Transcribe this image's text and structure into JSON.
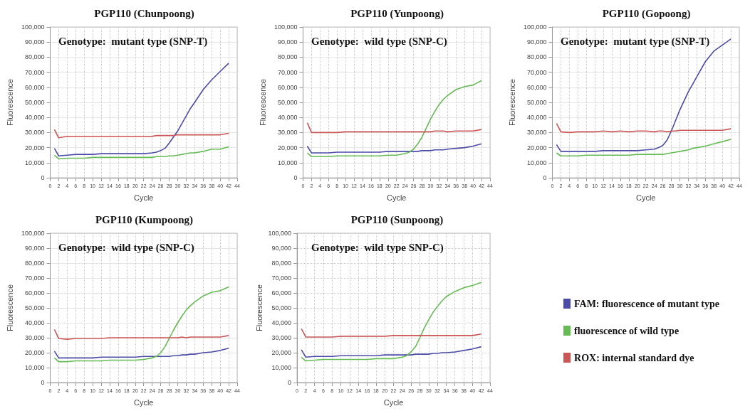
{
  "chart_data": [
    {
      "type": "line",
      "title": "PGP110 (Chunpoong)",
      "xlabel": "Cycle",
      "ylabel": "Fluorescence",
      "annotations": [
        "Genotype:  mutant type (SNP-T)"
      ],
      "grid": true,
      "marker": "none",
      "line_style": "solid",
      "xlim": [
        0,
        44
      ],
      "xticks": [
        0,
        2,
        4,
        6,
        8,
        10,
        12,
        14,
        16,
        18,
        20,
        22,
        24,
        26,
        28,
        30,
        32,
        34,
        36,
        38,
        40,
        42,
        44
      ],
      "ylim": [
        0,
        100000
      ],
      "yticks": [
        {
          "value": 0,
          "label": "0"
        },
        {
          "value": 10000,
          "label": "10,000"
        },
        {
          "value": 20000,
          "label": "20,000"
        },
        {
          "value": 30000,
          "label": "30,000"
        },
        {
          "value": 40000,
          "label": "40,000"
        },
        {
          "value": 50000,
          "label": "50,000"
        },
        {
          "value": 60000,
          "label": "60,000"
        },
        {
          "value": 70000,
          "label": "70,000"
        },
        {
          "value": 80000,
          "label": "80,000"
        },
        {
          "value": 90000,
          "label": "90,000"
        },
        {
          "value": 100000,
          "label": "100,000"
        }
      ],
      "x": [
        1,
        2,
        4,
        6,
        8,
        10,
        12,
        14,
        16,
        18,
        20,
        22,
        24,
        25,
        26,
        27,
        28,
        29,
        30,
        31,
        32,
        33,
        34,
        36,
        38,
        40,
        42
      ],
      "series": [
        {
          "color": "#4b4ba8",
          "values": [
            19500,
            14500,
            15000,
            15500,
            15500,
            15500,
            16000,
            16000,
            16000,
            16000,
            16000,
            16000,
            16500,
            17000,
            18000,
            19500,
            23000,
            27000,
            31000,
            36000,
            41000,
            46000,
            50000,
            58500,
            65000,
            70500,
            76000
          ]
        },
        {
          "color": "#66bb55",
          "values": [
            15000,
            12500,
            13000,
            13000,
            13000,
            13500,
            13500,
            13500,
            13500,
            13500,
            13500,
            13500,
            13500,
            14000,
            14000,
            14000,
            14500,
            14500,
            15000,
            15500,
            16000,
            16500,
            16500,
            17500,
            19000,
            19000,
            20500
          ]
        },
        {
          "color": "#cc5555",
          "values": [
            32000,
            26500,
            27500,
            27500,
            27500,
            27500,
            27500,
            27500,
            27500,
            27500,
            27500,
            27500,
            27500,
            28000,
            28000,
            28000,
            28000,
            28000,
            28500,
            28500,
            28500,
            28500,
            28500,
            28500,
            28500,
            28500,
            29500
          ]
        }
      ]
    },
    {
      "type": "line",
      "title": "PGP110 (Yunpoong)",
      "xlabel": "Cycle",
      "ylabel": "Fluorescence",
      "annotations": [
        "Genotype:  wild type (SNP-C)"
      ],
      "grid": true,
      "marker": "none",
      "line_style": "solid",
      "xlim": [
        0,
        44
      ],
      "xticks": [
        0,
        2,
        4,
        6,
        8,
        10,
        12,
        14,
        16,
        18,
        20,
        22,
        24,
        26,
        28,
        30,
        32,
        34,
        36,
        38,
        40,
        42,
        44
      ],
      "ylim": [
        0,
        100000
      ],
      "yticks": [
        {
          "value": 0,
          "label": "0"
        },
        {
          "value": 10000,
          "label": "10,000"
        },
        {
          "value": 20000,
          "label": "20,000"
        },
        {
          "value": 30000,
          "label": "30,000"
        },
        {
          "value": 40000,
          "label": "40,000"
        },
        {
          "value": 50000,
          "label": "50,000"
        },
        {
          "value": 60000,
          "label": "60,000"
        },
        {
          "value": 70000,
          "label": "70,000"
        },
        {
          "value": 80000,
          "label": "80,000"
        },
        {
          "value": 90000,
          "label": "90,000"
        },
        {
          "value": 100000,
          "label": "100,000"
        }
      ],
      "x": [
        1,
        2,
        4,
        6,
        8,
        10,
        12,
        14,
        16,
        18,
        20,
        22,
        24,
        25,
        26,
        27,
        28,
        29,
        30,
        31,
        32,
        33,
        34,
        36,
        38,
        40,
        42
      ],
      "series": [
        {
          "color": "#4b4ba8",
          "values": [
            21000,
            16500,
            16500,
            16500,
            17000,
            17000,
            17000,
            17000,
            17000,
            17000,
            17500,
            17500,
            17500,
            17500,
            17500,
            17500,
            18000,
            18000,
            18000,
            18500,
            18500,
            18500,
            19000,
            19500,
            20000,
            21000,
            22500
          ]
        },
        {
          "color": "#66bb55",
          "values": [
            16500,
            14000,
            14000,
            14000,
            14500,
            14500,
            14500,
            14500,
            14500,
            14500,
            15000,
            15000,
            16000,
            17000,
            19000,
            22500,
            27000,
            33000,
            39000,
            44000,
            48500,
            52000,
            54500,
            58500,
            60500,
            61500,
            64500
          ]
        },
        {
          "color": "#cc5555",
          "values": [
            36500,
            30000,
            30000,
            30000,
            30000,
            30500,
            30500,
            30500,
            30500,
            30500,
            30500,
            30500,
            30500,
            30500,
            30500,
            30500,
            30500,
            30500,
            30500,
            31000,
            31000,
            31000,
            30500,
            31000,
            31000,
            31000,
            32000
          ]
        }
      ]
    },
    {
      "type": "line",
      "title": "PGP110 (Gopoong)",
      "xlabel": "Cycle",
      "ylabel": "Fluorescence",
      "annotations": [
        "Genotype:  mutant type (SNP-T)"
      ],
      "grid": true,
      "marker": "none",
      "line_style": "solid",
      "xlim": [
        0,
        44
      ],
      "xticks": [
        0,
        2,
        4,
        6,
        8,
        10,
        12,
        14,
        16,
        18,
        20,
        22,
        24,
        26,
        28,
        30,
        32,
        34,
        36,
        38,
        40,
        42,
        44
      ],
      "ylim": [
        0,
        100000
      ],
      "yticks": [
        {
          "value": 0,
          "label": "0"
        },
        {
          "value": 10000,
          "label": "10,000"
        },
        {
          "value": 20000,
          "label": "20,000"
        },
        {
          "value": 30000,
          "label": "30,000"
        },
        {
          "value": 40000,
          "label": "40,000"
        },
        {
          "value": 50000,
          "label": "50,000"
        },
        {
          "value": 60000,
          "label": "60,000"
        },
        {
          "value": 70000,
          "label": "70,000"
        },
        {
          "value": 80000,
          "label": "80,000"
        },
        {
          "value": 90000,
          "label": "90,000"
        },
        {
          "value": 100000,
          "label": "100,000"
        }
      ],
      "x": [
        1,
        2,
        4,
        6,
        8,
        10,
        12,
        14,
        16,
        18,
        20,
        22,
        24,
        25,
        26,
        27,
        28,
        29,
        30,
        31,
        32,
        33,
        34,
        36,
        38,
        40,
        42
      ],
      "series": [
        {
          "color": "#4b4ba8",
          "values": [
            22000,
            17500,
            17500,
            17500,
            17500,
            17500,
            18000,
            18000,
            18000,
            18000,
            18000,
            18500,
            19000,
            20000,
            21500,
            25000,
            31000,
            38000,
            45000,
            51000,
            57000,
            62000,
            67000,
            77000,
            84000,
            88000,
            92000
          ]
        },
        {
          "color": "#66bb55",
          "values": [
            16500,
            14500,
            14500,
            14500,
            15000,
            15000,
            15000,
            15000,
            15000,
            15000,
            15500,
            15500,
            15500,
            15500,
            15500,
            16000,
            16500,
            17000,
            17500,
            18000,
            18500,
            19500,
            20000,
            21000,
            22500,
            24000,
            25500
          ]
        },
        {
          "color": "#cc5555",
          "values": [
            36000,
            30500,
            30000,
            30500,
            30500,
            30500,
            31000,
            30500,
            31000,
            30500,
            31000,
            31000,
            30500,
            31000,
            31000,
            30500,
            31000,
            31000,
            31500,
            31500,
            31500,
            31500,
            31500,
            31500,
            31500,
            31500,
            32500
          ]
        }
      ]
    },
    {
      "type": "line",
      "title": "PGP110 (Kumpoong)",
      "xlabel": "Cycle",
      "ylabel": "Fluorescence",
      "annotations": [
        "Genotype:  wild type (SNP-C)"
      ],
      "grid": true,
      "marker": "none",
      "line_style": "solid",
      "xlim": [
        0,
        44
      ],
      "xticks": [
        0,
        2,
        4,
        6,
        8,
        10,
        12,
        14,
        16,
        18,
        20,
        22,
        24,
        26,
        28,
        30,
        32,
        34,
        36,
        38,
        40,
        42,
        44
      ],
      "ylim": [
        0,
        100000
      ],
      "yticks": [
        {
          "value": 0,
          "label": "0"
        },
        {
          "value": 10000,
          "label": "10,000"
        },
        {
          "value": 20000,
          "label": "20,000"
        },
        {
          "value": 30000,
          "label": "30,000"
        },
        {
          "value": 40000,
          "label": "40,000"
        },
        {
          "value": 50000,
          "label": "50,000"
        },
        {
          "value": 60000,
          "label": "60,000"
        },
        {
          "value": 70000,
          "label": "70,000"
        },
        {
          "value": 80000,
          "label": "80,000"
        },
        {
          "value": 90000,
          "label": "90,000"
        },
        {
          "value": 100000,
          "label": "100,000"
        }
      ],
      "x": [
        1,
        2,
        4,
        6,
        8,
        10,
        12,
        14,
        16,
        18,
        20,
        22,
        24,
        25,
        26,
        27,
        28,
        29,
        30,
        31,
        32,
        33,
        34,
        36,
        38,
        40,
        42
      ],
      "series": [
        {
          "color": "#4b4ba8",
          "values": [
            21000,
            16500,
            16500,
            16500,
            16500,
            16500,
            17000,
            17000,
            17000,
            17000,
            17000,
            17500,
            17500,
            17500,
            17500,
            17500,
            17500,
            18000,
            18000,
            18500,
            18500,
            19000,
            19000,
            20000,
            20500,
            21500,
            23000
          ]
        },
        {
          "color": "#66bb55",
          "values": [
            16500,
            14000,
            14000,
            14500,
            14500,
            14500,
            14500,
            15000,
            15000,
            15000,
            15000,
            15500,
            16500,
            17500,
            20000,
            24000,
            29500,
            35000,
            40000,
            44500,
            48500,
            51500,
            54000,
            58000,
            60500,
            61500,
            64000
          ]
        },
        {
          "color": "#cc5555",
          "values": [
            35500,
            29500,
            29000,
            29500,
            29500,
            29500,
            29500,
            30000,
            30000,
            30000,
            30000,
            30000,
            30000,
            30000,
            30000,
            30000,
            30000,
            30000,
            30000,
            30500,
            30000,
            30500,
            30500,
            30500,
            30500,
            30500,
            31500
          ]
        }
      ]
    },
    {
      "type": "line",
      "title": "PGP110 (Sunpoong)",
      "xlabel": "Cycle",
      "ylabel": "Fluorescence",
      "annotations": [
        "Genotype:  wild type SNP-C)"
      ],
      "grid": true,
      "marker": "none",
      "line_style": "solid",
      "legend": "right",
      "xlim": [
        0,
        44
      ],
      "xticks": [
        0,
        2,
        4,
        6,
        8,
        10,
        12,
        14,
        16,
        18,
        20,
        22,
        24,
        26,
        28,
        30,
        32,
        34,
        36,
        38,
        40,
        42,
        44
      ],
      "ylim": [
        0,
        100000
      ],
      "yticks": [
        {
          "value": 0,
          "label": "0"
        },
        {
          "value": 10000,
          "label": "10,000"
        },
        {
          "value": 20000,
          "label": "20,000"
        },
        {
          "value": 30000,
          "label": "30,000"
        },
        {
          "value": 40000,
          "label": "40,000"
        },
        {
          "value": 50000,
          "label": "50,000"
        },
        {
          "value": 60000,
          "label": "60,000"
        },
        {
          "value": 70000,
          "label": "70,000"
        },
        {
          "value": 80000,
          "label": "80,000"
        },
        {
          "value": 90000,
          "label": "90,000"
        },
        {
          "value": 100000,
          "label": "100,000"
        }
      ],
      "x": [
        1,
        2,
        4,
        6,
        8,
        10,
        12,
        14,
        16,
        18,
        20,
        22,
        24,
        25,
        26,
        27,
        28,
        29,
        30,
        31,
        32,
        33,
        34,
        36,
        38,
        40,
        42
      ],
      "series": [
        {
          "name": "FAM: fluorescence of mutant type",
          "color": "#4b4ba8",
          "values": [
            22000,
            17000,
            17500,
            17500,
            17500,
            18000,
            18000,
            18000,
            18000,
            18000,
            18500,
            18500,
            18500,
            18500,
            18500,
            19000,
            19000,
            19000,
            19000,
            19500,
            19500,
            20000,
            20000,
            20500,
            21500,
            22500,
            24000
          ]
        },
        {
          "name": "fluorescence of wild type",
          "color": "#66bb55",
          "values": [
            17000,
            14500,
            15000,
            15500,
            15500,
            15500,
            15500,
            15500,
            15500,
            16000,
            16000,
            16000,
            17000,
            18000,
            20500,
            24000,
            30000,
            36500,
            42000,
            47000,
            51000,
            54500,
            57500,
            61000,
            63500,
            65000,
            67000
          ]
        },
        {
          "name": "ROX: internal standard dye",
          "color": "#cc5555",
          "values": [
            36000,
            30500,
            30500,
            30500,
            30500,
            31000,
            31000,
            31000,
            31000,
            31000,
            31000,
            31500,
            31500,
            31500,
            31500,
            31500,
            31500,
            31500,
            31500,
            31500,
            31500,
            31500,
            31500,
            31500,
            31500,
            31500,
            32500
          ]
        }
      ]
    }
  ]
}
